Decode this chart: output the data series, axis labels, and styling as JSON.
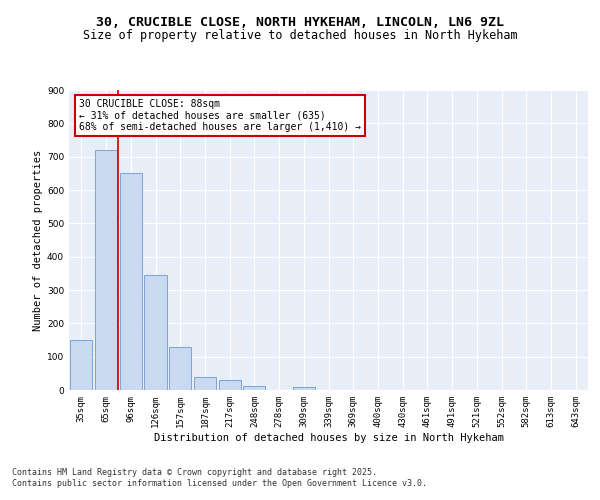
{
  "title_line1": "30, CRUCIBLE CLOSE, NORTH HYKEHAM, LINCOLN, LN6 9ZL",
  "title_line2": "Size of property relative to detached houses in North Hykeham",
  "xlabel": "Distribution of detached houses by size in North Hykeham",
  "ylabel": "Number of detached properties",
  "categories": [
    "35sqm",
    "65sqm",
    "96sqm",
    "126sqm",
    "157sqm",
    "187sqm",
    "217sqm",
    "248sqm",
    "278sqm",
    "309sqm",
    "339sqm",
    "369sqm",
    "400sqm",
    "430sqm",
    "461sqm",
    "491sqm",
    "521sqm",
    "552sqm",
    "582sqm",
    "613sqm",
    "643sqm"
  ],
  "values": [
    150,
    720,
    650,
    345,
    130,
    38,
    30,
    12,
    0,
    8,
    0,
    0,
    0,
    0,
    0,
    0,
    0,
    0,
    0,
    0,
    0
  ],
  "bar_color": "#c8d9f0",
  "bar_edge_color": "#7aa6d4",
  "vline_x": 1.5,
  "vline_color": "#cc0000",
  "annotation_text": "30 CRUCIBLE CLOSE: 88sqm\n← 31% of detached houses are smaller (635)\n68% of semi-detached houses are larger (1,410) →",
  "annotation_box_color": "#ffffff",
  "annotation_box_edge": "#cc0000",
  "ylim": [
    0,
    900
  ],
  "yticks": [
    0,
    100,
    200,
    300,
    400,
    500,
    600,
    700,
    800,
    900
  ],
  "bg_color": "#e8eef8",
  "grid_color": "#ffffff",
  "footer_line1": "Contains HM Land Registry data © Crown copyright and database right 2025.",
  "footer_line2": "Contains public sector information licensed under the Open Government Licence v3.0.",
  "title_fontsize": 9.5,
  "subtitle_fontsize": 8.5,
  "axis_label_fontsize": 7.5,
  "tick_fontsize": 6.5,
  "annotation_fontsize": 7,
  "footer_fontsize": 6
}
